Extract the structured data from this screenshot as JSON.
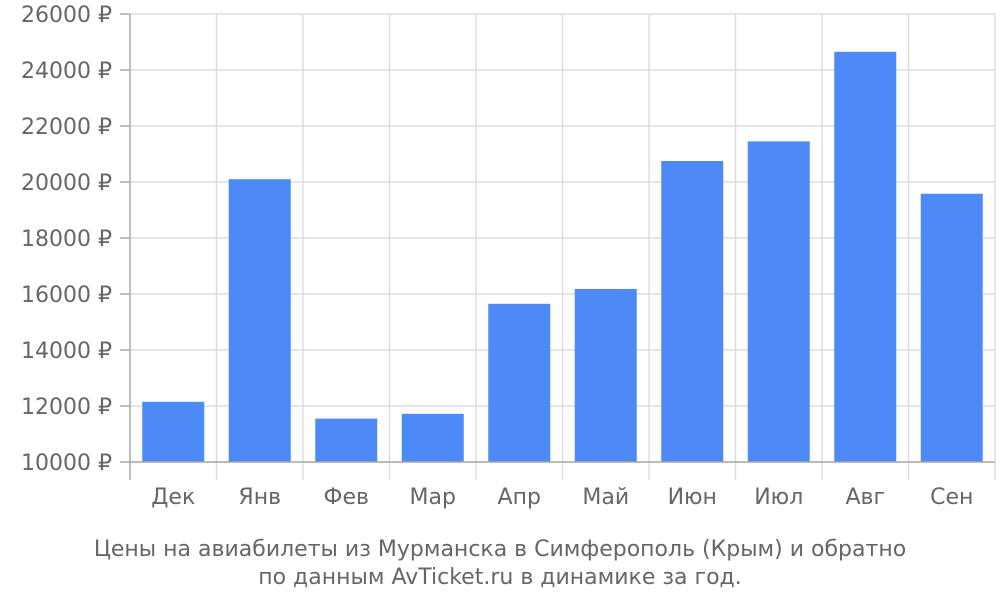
{
  "chart_data": {
    "type": "bar",
    "categories": [
      "Дек",
      "Янв",
      "Фев",
      "Мар",
      "Апр",
      "Май",
      "Июн",
      "Июл",
      "Авг",
      "Сен"
    ],
    "values": [
      12150,
      20100,
      11550,
      11720,
      15650,
      16180,
      20750,
      21450,
      24650,
      19580
    ],
    "ylim": [
      10000,
      26000
    ],
    "yticks": [
      10000,
      12000,
      14000,
      16000,
      18000,
      20000,
      22000,
      24000,
      26000
    ],
    "ytick_labels": [
      "10000 ₽",
      "12000 ₽",
      "14000 ₽",
      "16000 ₽",
      "18000 ₽",
      "20000 ₽",
      "22000 ₽",
      "24000 ₽",
      "26000 ₽"
    ],
    "caption": [
      "Цены на авиабилеты из Мурманска в Симферополь (Крым) и обратно",
      "по данным AvTicket.ru в динамике за год."
    ],
    "bar_color": "#4d8af8",
    "grid": true,
    "grid_color": "#dddddd",
    "axis_color": "#aaaaaa",
    "text_color": "#666666"
  }
}
